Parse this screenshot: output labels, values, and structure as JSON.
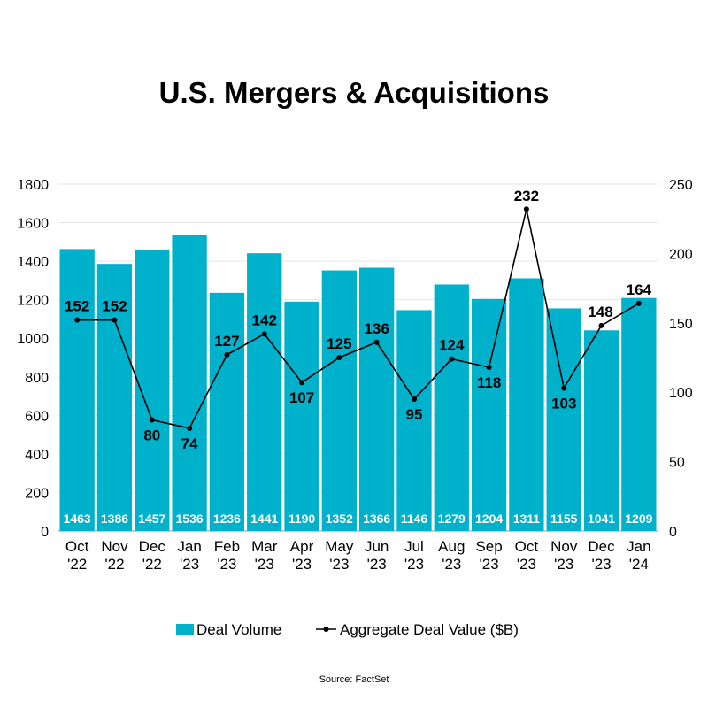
{
  "chart_data": {
    "type": "bar",
    "title": "U.S. Mergers & Acquisitions",
    "categories": [
      [
        "Oct",
        "'22"
      ],
      [
        "Nov",
        "'22"
      ],
      [
        "Dec",
        "'22"
      ],
      [
        "Jan",
        "'23"
      ],
      [
        "Feb",
        "'23"
      ],
      [
        "Mar",
        "'23"
      ],
      [
        "Apr",
        "'23"
      ],
      [
        "May",
        "'23"
      ],
      [
        "Jun",
        "'23"
      ],
      [
        "Jul",
        "'23"
      ],
      [
        "Aug",
        "'23"
      ],
      [
        "Sep",
        "'23"
      ],
      [
        "Oct",
        "'23"
      ],
      [
        "Nov",
        "'23"
      ],
      [
        "Dec",
        "'23"
      ],
      [
        "Jan",
        "'24"
      ]
    ],
    "series": [
      {
        "name": "Deal Volume",
        "type": "bar",
        "axis": "left",
        "color": "#00b1cc",
        "values": [
          1463,
          1386,
          1457,
          1536,
          1236,
          1441,
          1190,
          1352,
          1366,
          1146,
          1279,
          1204,
          1311,
          1155,
          1041,
          1209
        ]
      },
      {
        "name": "Aggregate Deal Value ($B)",
        "type": "line",
        "axis": "right",
        "color": "#000000",
        "values": [
          152,
          152,
          80,
          74,
          127,
          142,
          107,
          125,
          136,
          95,
          124,
          118,
          232,
          103,
          148,
          164
        ]
      }
    ],
    "y_left": {
      "range": [
        0,
        1800
      ],
      "ticks": [
        0,
        200,
        400,
        600,
        800,
        1000,
        1200,
        1400,
        1600,
        1800
      ]
    },
    "y_right": {
      "range": [
        0,
        250
      ],
      "ticks": [
        0,
        50,
        100,
        150,
        200,
        250
      ]
    },
    "grid": true,
    "legend": "bottom"
  },
  "source": "Source: FactSet"
}
